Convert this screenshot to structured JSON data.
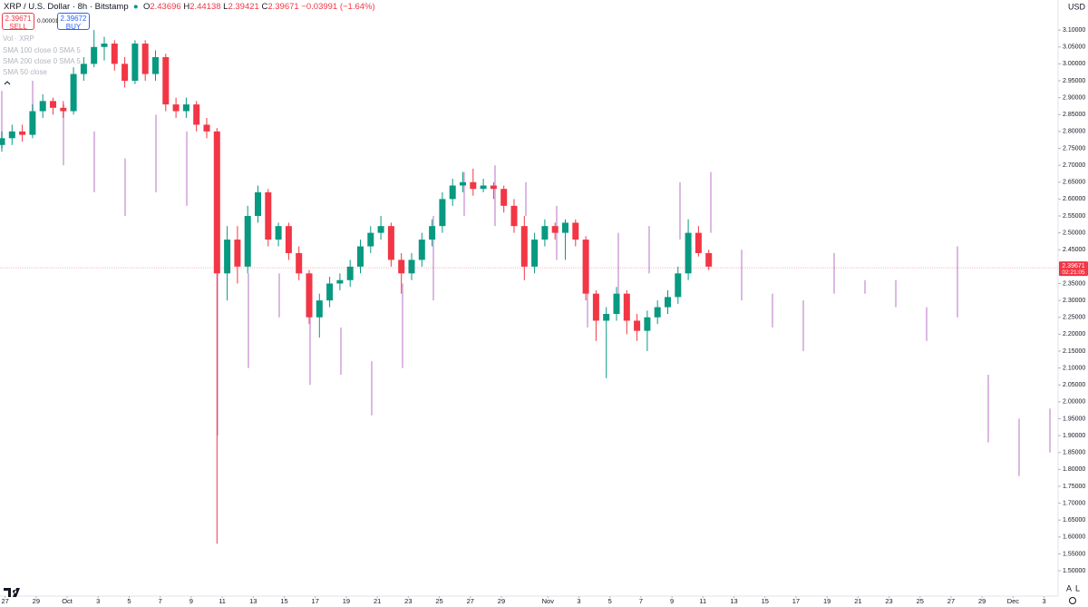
{
  "header": {
    "symbol": "XRP / U.S. Dollar · 8h · Bitstamp",
    "open_label": "O",
    "open": "2.43696",
    "high_label": "H",
    "high": "2.44138",
    "low_label": "L",
    "low": "2.39421",
    "close_label": "C",
    "close": "2.39671",
    "change": "−0.03991 (−1.64%)"
  },
  "trade": {
    "sell_price": "2.39671",
    "sell_label": "SELL",
    "spread": "0.00001",
    "buy_price": "2.39672",
    "buy_label": "BUY"
  },
  "indicators": [
    "Vol · XRP",
    "SMA 100 close 0 SMA 5",
    "SMA 200 close 0 SMA 5",
    "SMA 50 close"
  ],
  "toolbar": {
    "currency": "USD",
    "auto": "A",
    "log": "L"
  },
  "chart_data": {
    "type": "candlestick",
    "up_color": "#089981",
    "down_color": "#f23645",
    "projection_color": "#dcb8e3",
    "ylim": [
      1.425,
      3.189
    ],
    "xlim": [
      -4.33,
      63.9
    ],
    "yticks": [
      {
        "value": 3.1,
        "label": "3.10000"
      },
      {
        "value": 3.05,
        "label": "3.05000"
      },
      {
        "value": 3.0,
        "label": "3.00000"
      },
      {
        "value": 2.95,
        "label": "2.95000"
      },
      {
        "value": 2.9,
        "label": "2.90000"
      },
      {
        "value": 2.85,
        "label": "2.85000"
      },
      {
        "value": 2.8,
        "label": "2.80000"
      },
      {
        "value": 2.75,
        "label": "2.75000"
      },
      {
        "value": 2.7,
        "label": "2.70000"
      },
      {
        "value": 2.65,
        "label": "2.65000"
      },
      {
        "value": 2.6,
        "label": "2.60000"
      },
      {
        "value": 2.55,
        "label": "2.55000"
      },
      {
        "value": 2.5,
        "label": "2.50000"
      },
      {
        "value": 2.45,
        "label": "2.45000"
      },
      {
        "value": 2.35,
        "label": "2.35000"
      },
      {
        "value": 2.3,
        "label": "2.30000"
      },
      {
        "value": 2.25,
        "label": "2.25000"
      },
      {
        "value": 2.2,
        "label": "2.20000"
      },
      {
        "value": 2.15,
        "label": "2.15000"
      },
      {
        "value": 2.1,
        "label": "2.10000"
      },
      {
        "value": 2.05,
        "label": "2.05000"
      },
      {
        "value": 2.0,
        "label": "2.00000"
      },
      {
        "value": 1.95,
        "label": "1.95000"
      },
      {
        "value": 1.9,
        "label": "1.90000"
      },
      {
        "value": 1.85,
        "label": "1.85000"
      },
      {
        "value": 1.8,
        "label": "1.80000"
      },
      {
        "value": 1.75,
        "label": "1.75000"
      },
      {
        "value": 1.7,
        "label": "1.70000"
      },
      {
        "value": 1.65,
        "label": "1.65000"
      },
      {
        "value": 1.6,
        "label": "1.60000"
      },
      {
        "value": 1.55,
        "label": "1.55000"
      },
      {
        "value": 1.5,
        "label": "1.50000"
      }
    ],
    "xticks": [
      {
        "value": -4,
        "label": "27"
      },
      {
        "value": -2,
        "label": "29"
      },
      {
        "value": 0,
        "label": "Oct"
      },
      {
        "value": 2,
        "label": "3"
      },
      {
        "value": 4,
        "label": "5"
      },
      {
        "value": 6,
        "label": "7"
      },
      {
        "value": 8,
        "label": "9"
      },
      {
        "value": 10,
        "label": "11"
      },
      {
        "value": 12,
        "label": "13"
      },
      {
        "value": 14,
        "label": "15"
      },
      {
        "value": 16,
        "label": "17"
      },
      {
        "value": 18,
        "label": "19"
      },
      {
        "value": 20,
        "label": "21"
      },
      {
        "value": 22,
        "label": "23"
      },
      {
        "value": 24,
        "label": "25"
      },
      {
        "value": 26,
        "label": "27"
      },
      {
        "value": 28,
        "label": "29"
      },
      {
        "value": 31,
        "label": "Nov"
      },
      {
        "value": 33,
        "label": "3"
      },
      {
        "value": 35,
        "label": "5"
      },
      {
        "value": 37,
        "label": "7"
      },
      {
        "value": 39,
        "label": "9"
      },
      {
        "value": 41,
        "label": "11"
      },
      {
        "value": 43,
        "label": "13"
      },
      {
        "value": 45,
        "label": "15"
      },
      {
        "value": 47,
        "label": "17"
      },
      {
        "value": 49,
        "label": "19"
      },
      {
        "value": 51,
        "label": "21"
      },
      {
        "value": 53,
        "label": "23"
      },
      {
        "value": 55,
        "label": "25"
      },
      {
        "value": 57,
        "label": "27"
      },
      {
        "value": 59,
        "label": "29"
      },
      {
        "value": 61,
        "label": "Dec"
      },
      {
        "value": 63,
        "label": "3"
      }
    ],
    "last_price": 2.39671,
    "countdown": "02:21:05",
    "candles": [
      [
        2.76,
        2.8,
        2.74,
        2.78
      ],
      [
        2.78,
        2.82,
        2.76,
        2.8
      ],
      [
        2.8,
        2.82,
        2.77,
        2.79
      ],
      [
        2.79,
        2.88,
        2.78,
        2.86
      ],
      [
        2.86,
        2.91,
        2.84,
        2.89
      ],
      [
        2.89,
        2.9,
        2.85,
        2.87
      ],
      [
        2.87,
        2.89,
        2.84,
        2.86
      ],
      [
        2.86,
        2.99,
        2.85,
        2.97
      ],
      [
        2.97,
        3.02,
        2.95,
        3.0
      ],
      [
        3.0,
        3.1,
        2.99,
        3.05
      ],
      [
        3.05,
        3.08,
        3.01,
        3.06
      ],
      [
        3.06,
        3.07,
        2.98,
        3.0
      ],
      [
        3.0,
        3.02,
        2.93,
        2.95
      ],
      [
        2.95,
        3.07,
        2.94,
        3.06
      ],
      [
        3.06,
        3.07,
        2.95,
        2.97
      ],
      [
        2.97,
        3.04,
        2.95,
        3.02
      ],
      [
        3.02,
        3.03,
        2.86,
        2.88
      ],
      [
        2.88,
        2.9,
        2.84,
        2.86
      ],
      [
        2.86,
        2.9,
        2.84,
        2.88
      ],
      [
        2.88,
        2.89,
        2.8,
        2.82
      ],
      [
        2.82,
        2.84,
        2.78,
        2.8
      ],
      [
        2.8,
        2.81,
        1.58,
        2.38
      ],
      [
        2.38,
        2.52,
        2.3,
        2.48
      ],
      [
        2.48,
        2.52,
        2.35,
        2.4
      ],
      [
        2.4,
        2.58,
        2.38,
        2.55
      ],
      [
        2.55,
        2.64,
        2.53,
        2.62
      ],
      [
        2.62,
        2.63,
        2.46,
        2.48
      ],
      [
        2.48,
        2.53,
        2.46,
        2.52
      ],
      [
        2.52,
        2.53,
        2.42,
        2.44
      ],
      [
        2.44,
        2.46,
        2.36,
        2.38
      ],
      [
        2.38,
        2.39,
        2.23,
        2.25
      ],
      [
        2.25,
        2.32,
        2.19,
        2.3
      ],
      [
        2.3,
        2.37,
        2.28,
        2.35
      ],
      [
        2.35,
        2.38,
        2.33,
        2.36
      ],
      [
        2.36,
        2.42,
        2.34,
        2.4
      ],
      [
        2.4,
        2.48,
        2.38,
        2.46
      ],
      [
        2.46,
        2.52,
        2.44,
        2.5
      ],
      [
        2.5,
        2.55,
        2.48,
        2.52
      ],
      [
        2.52,
        2.53,
        2.4,
        2.42
      ],
      [
        2.42,
        2.44,
        2.32,
        2.38
      ],
      [
        2.38,
        2.44,
        2.36,
        2.42
      ],
      [
        2.42,
        2.5,
        2.4,
        2.48
      ],
      [
        2.48,
        2.54,
        2.46,
        2.52
      ],
      [
        2.52,
        2.62,
        2.5,
        2.6
      ],
      [
        2.6,
        2.66,
        2.58,
        2.64
      ],
      [
        2.64,
        2.68,
        2.62,
        2.65
      ],
      [
        2.65,
        2.69,
        2.61,
        2.63
      ],
      [
        2.63,
        2.66,
        2.62,
        2.64
      ],
      [
        2.64,
        2.65,
        2.6,
        2.63
      ],
      [
        2.63,
        2.64,
        2.56,
        2.58
      ],
      [
        2.58,
        2.6,
        2.5,
        2.52
      ],
      [
        2.52,
        2.55,
        2.36,
        2.4
      ],
      [
        2.4,
        2.5,
        2.38,
        2.48
      ],
      [
        2.48,
        2.54,
        2.46,
        2.52
      ],
      [
        2.52,
        2.53,
        2.48,
        2.5
      ],
      [
        2.5,
        2.54,
        2.42,
        2.53
      ],
      [
        2.53,
        2.54,
        2.46,
        2.48
      ],
      [
        2.48,
        2.49,
        2.3,
        2.32
      ],
      [
        2.32,
        2.33,
        2.18,
        2.24
      ],
      [
        2.24,
        2.28,
        2.07,
        2.26
      ],
      [
        2.26,
        2.34,
        2.24,
        2.32
      ],
      [
        2.32,
        2.33,
        2.2,
        2.24
      ],
      [
        2.24,
        2.26,
        2.18,
        2.21
      ],
      [
        2.21,
        2.27,
        2.15,
        2.25
      ],
      [
        2.25,
        2.3,
        2.23,
        2.28
      ],
      [
        2.28,
        2.33,
        2.26,
        2.31
      ],
      [
        2.31,
        2.4,
        2.29,
        2.38
      ],
      [
        2.38,
        2.54,
        2.36,
        2.5
      ],
      [
        2.5,
        2.52,
        2.43,
        2.44
      ],
      [
        2.44,
        2.45,
        2.39,
        2.4
      ]
    ],
    "projection": [
      [
        2.75,
        2.92
      ],
      [
        2.8,
        2.95
      ],
      [
        2.7,
        2.88
      ],
      [
        2.62,
        2.8
      ],
      [
        2.55,
        2.72
      ],
      [
        2.62,
        2.85
      ],
      [
        2.58,
        2.8
      ],
      [
        1.9,
        2.7
      ],
      [
        2.1,
        2.38
      ],
      [
        2.25,
        2.38
      ],
      [
        2.05,
        2.28
      ],
      [
        2.08,
        2.22
      ],
      [
        1.96,
        2.12
      ],
      [
        2.1,
        2.35
      ],
      [
        2.3,
        2.55
      ],
      [
        2.55,
        2.68
      ],
      [
        2.52,
        2.7
      ],
      [
        2.55,
        2.65
      ],
      [
        2.42,
        2.58
      ],
      [
        2.22,
        2.4
      ],
      [
        2.3,
        2.5
      ],
      [
        2.38,
        2.52
      ],
      [
        2.48,
        2.65
      ],
      [
        2.5,
        2.68
      ],
      [
        2.3,
        2.45
      ],
      [
        2.22,
        2.32
      ],
      [
        2.15,
        2.3
      ],
      [
        2.32,
        2.44
      ],
      [
        2.32,
        2.36
      ],
      [
        2.28,
        2.36
      ],
      [
        2.18,
        2.28
      ],
      [
        2.25,
        2.46
      ],
      [
        1.88,
        2.08
      ],
      [
        1.78,
        1.95
      ],
      [
        1.85,
        1.98
      ]
    ]
  }
}
